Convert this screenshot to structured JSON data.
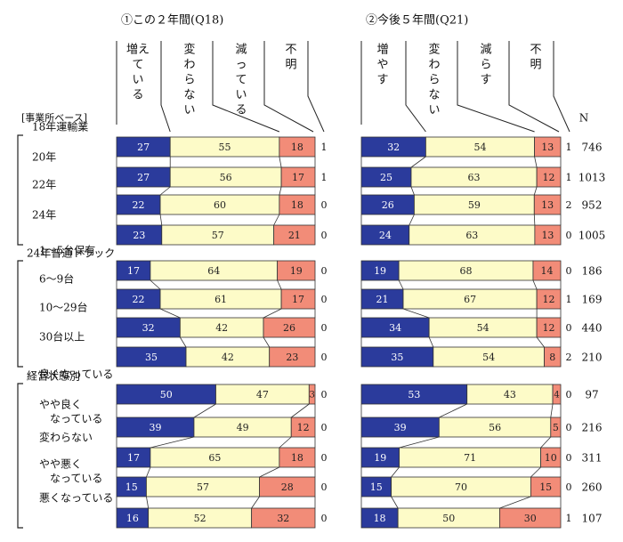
{
  "chart_data": {
    "type": "bar",
    "stacked": "percent",
    "base_label": "[事業所ベース]",
    "n_label": "N",
    "colors": {
      "increase": "#2b3b9c",
      "same": "#fdfbc8",
      "decrease": "#f28c78",
      "unknown": "#ffffff"
    },
    "groups": [
      {
        "label": "",
        "rows": [
          {
            "label": [
              "18年運輸業"
            ],
            "n": "746",
            "a": [
              27,
              55,
              18,
              1
            ],
            "b": [
              32,
              54,
              13,
              1
            ]
          },
          {
            "label": [
              "20年"
            ],
            "n": "1013",
            "a": [
              27,
              56,
              17,
              1
            ],
            "b": [
              25,
              63,
              12,
              1
            ]
          },
          {
            "label": [
              "22年"
            ],
            "n": "952",
            "a": [
              22,
              60,
              18,
              0
            ],
            "b": [
              26,
              59,
              13,
              2
            ]
          },
          {
            "label": [
              "24年"
            ],
            "n": "1005",
            "a": [
              23,
              57,
              21,
              0
            ],
            "b": [
              24,
              63,
              13,
              0
            ]
          }
        ]
      },
      {
        "label": "24年普通トラック",
        "rows": [
          {
            "label": [
              "1～5台保有"
            ],
            "n": "186",
            "a": [
              17,
              64,
              19,
              0
            ],
            "b": [
              19,
              68,
              14,
              0
            ]
          },
          {
            "label": [
              "6～9台"
            ],
            "n": "169",
            "a": [
              22,
              61,
              17,
              0
            ],
            "b": [
              21,
              67,
              12,
              1
            ]
          },
          {
            "label": [
              "10～29台"
            ],
            "n": "440",
            "a": [
              32,
              42,
              26,
              0
            ],
            "b": [
              34,
              54,
              12,
              0
            ]
          },
          {
            "label": [
              "30台以上"
            ],
            "n": "210",
            "a": [
              35,
              42,
              23,
              0
            ],
            "b": [
              35,
              54,
              8,
              2
            ]
          }
        ]
      },
      {
        "label": "経営状態別",
        "rows": [
          {
            "label": [
              "良くなっている"
            ],
            "n": "97",
            "a": [
              50,
              47,
              3,
              0
            ],
            "b": [
              53,
              43,
              4,
              0
            ]
          },
          {
            "label": [
              "やや良く",
              "なっている"
            ],
            "n": "216",
            "a": [
              39,
              49,
              12,
              0
            ],
            "b": [
              39,
              56,
              5,
              0
            ]
          },
          {
            "label": [
              "変わらない"
            ],
            "n": "311",
            "a": [
              17,
              65,
              18,
              0
            ],
            "b": [
              19,
              71,
              10,
              0
            ]
          },
          {
            "label": [
              "やや悪く",
              "なっている"
            ],
            "n": "260",
            "a": [
              15,
              57,
              28,
              0
            ],
            "b": [
              15,
              70,
              15,
              0
            ]
          },
          {
            "label": [
              "悪くなっている"
            ],
            "n": "107",
            "a": [
              16,
              52,
              32,
              0
            ],
            "b": [
              18,
              50,
              30,
              1
            ]
          }
        ]
      }
    ],
    "panels": [
      {
        "key": "a",
        "title": "①この２年間(Q18)",
        "legend": [
          [
            "増え",
            "て",
            "い",
            "る"
          ],
          [
            "変",
            "わ",
            "ら",
            "な",
            "い"
          ],
          [
            "減",
            "っ",
            "て",
            "い",
            "る"
          ],
          [
            "不",
            "明"
          ]
        ]
      },
      {
        "key": "b",
        "title": "②今後５年間(Q21)",
        "legend": [
          [
            "増",
            "や",
            "す"
          ],
          [
            "変",
            "わ",
            "ら",
            "な",
            "い"
          ],
          [
            "減",
            "ら",
            "す"
          ],
          [
            "不",
            "明"
          ]
        ]
      }
    ]
  }
}
